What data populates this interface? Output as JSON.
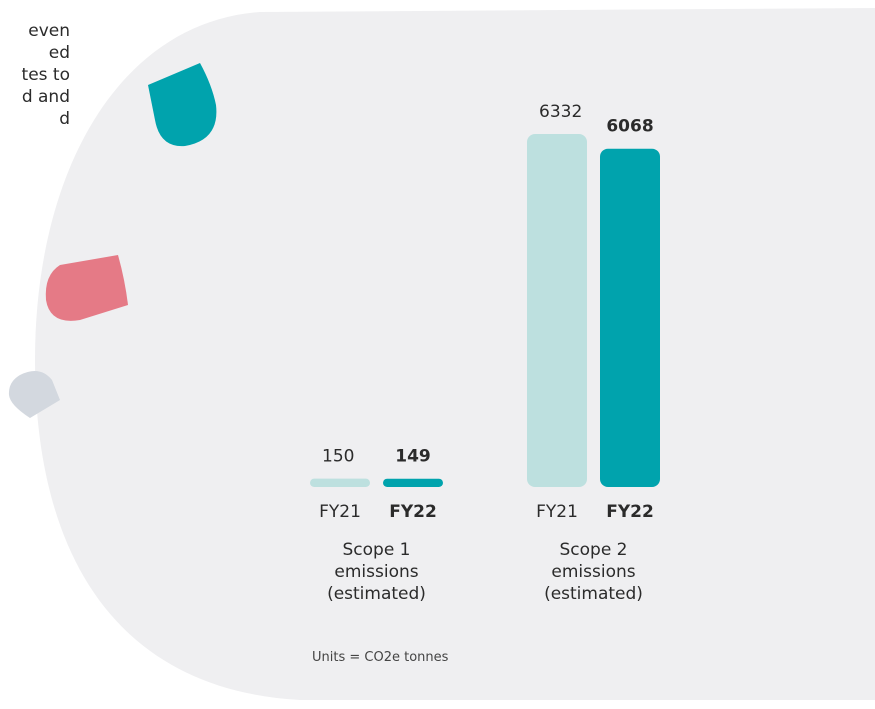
{
  "side_text": [
    "even",
    "ed",
    "tes to",
    "d and",
    "d"
  ],
  "chart_data": {
    "type": "bar",
    "categories": [
      "Scope 1 emissions (estimated)",
      "Scope 2 emissions (estimated)"
    ],
    "series": [
      {
        "name": "FY21",
        "color": "#bde0df",
        "values": [
          150,
          6332
        ]
      },
      {
        "name": "FY22",
        "color": "#00a3ad",
        "values": [
          149,
          6068
        ]
      }
    ],
    "note": "Units = CO2e tonnes"
  }
}
